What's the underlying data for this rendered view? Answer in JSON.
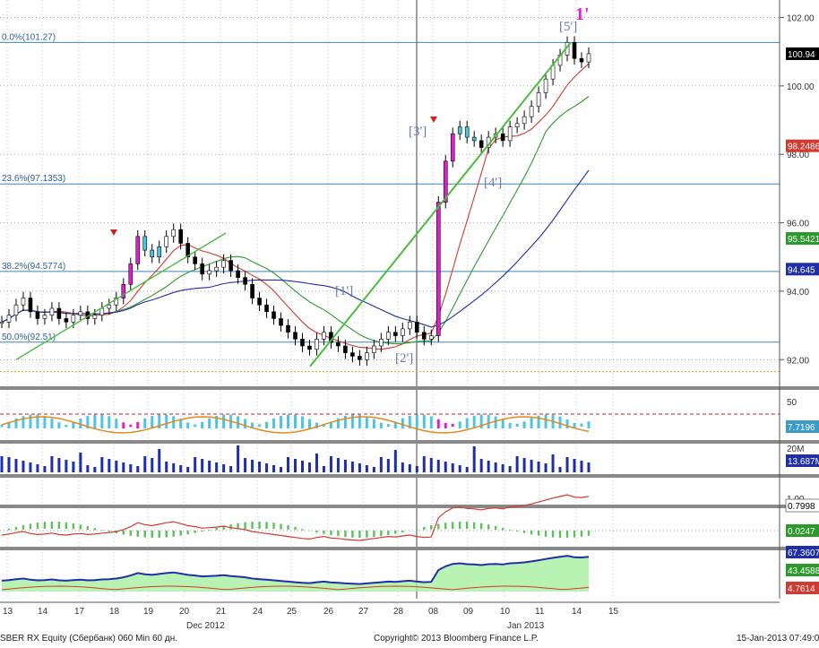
{
  "footer": {
    "left": "SBER RX Equity (Сбербанк) 060 Min 60 дн.",
    "center": "Copyright© 2013 Bloomberg Finance L.P.",
    "right": "15-Jan-2013 07:49:02"
  },
  "colors": {
    "price_candle": "#000000",
    "ma_fast": "#d03a30",
    "ma_mid": "#2b9a2b",
    "ma_slow": "#1f2fa8",
    "fib_line": "#3a86b8",
    "trend_line": "#4cbc3c",
    "label": "#6b78b0",
    "magenta": "#e020d0",
    "cyan": "#4ec4e4"
  },
  "chart_data": {
    "type": "candlestick",
    "x_tick_labels": [
      "13",
      "14",
      "17",
      "18",
      "19",
      "20",
      "21",
      "24",
      "25",
      "26",
      "27",
      "28",
      "08",
      "09",
      "10",
      "11",
      "14",
      "15"
    ],
    "month_labels": [
      "Dec 2012",
      "Jan 2013"
    ],
    "y_axis": {
      "ticks": [
        "102.00",
        "100.00",
        "98.00",
        "96.00",
        "94.00",
        "92.00"
      ],
      "range": [
        91.3,
        102.3
      ]
    },
    "fib_levels": [
      {
        "label": "0.0%(101.27)",
        "value": 101.27
      },
      {
        "label": "23.6%(97.1353)",
        "value": 97.1353
      },
      {
        "label": "38.2%(94.5774)",
        "value": 94.5774
      },
      {
        "label": "50.0%(92.51)",
        "value": 92.51
      }
    ],
    "price_badges": [
      {
        "text": "100.94",
        "value": 100.94,
        "color": "#000000"
      },
      {
        "text": "98.2486",
        "value": 98.2486,
        "color": "#d03a30"
      },
      {
        "text": "95.5421",
        "value": 95.5421,
        "color": "#2b9a2b"
      },
      {
        "text": "94.645",
        "value": 94.645,
        "color": "#1f2fa8"
      }
    ],
    "wave_labels": [
      {
        "text": "[1']"
      },
      {
        "text": "[2']"
      },
      {
        "text": "[3']"
      },
      {
        "text": "[4']"
      },
      {
        "text": "[5']"
      },
      {
        "text": "1'"
      }
    ],
    "price_path": [
      93.1,
      93.3,
      93.6,
      93.8,
      93.4,
      93.2,
      93.3,
      93.5,
      93.2,
      93.1,
      93.3,
      93.4,
      93.2,
      93.3,
      93.5,
      93.6,
      93.8,
      94.2,
      94.8,
      95.6,
      95.2,
      95.0,
      95.3,
      95.6,
      95.8,
      95.4,
      95.0,
      94.8,
      94.5,
      94.6,
      94.7,
      94.9,
      94.6,
      94.4,
      94.2,
      93.8,
      93.6,
      93.4,
      93.2,
      93.0,
      92.8,
      92.6,
      92.4,
      92.3,
      92.6,
      92.8,
      92.5,
      92.4,
      92.2,
      92.1,
      92.0,
      92.2,
      92.4,
      92.6,
      92.8,
      92.7,
      92.9,
      93.1,
      92.8,
      92.6,
      92.7,
      96.6,
      97.8,
      98.6,
      98.8,
      98.5,
      98.4,
      98.2,
      98.5,
      98.6,
      98.4,
      98.8,
      98.9,
      99.1,
      99.4,
      99.8,
      100.2,
      100.6,
      100.9,
      101.27,
      100.8,
      100.7,
      100.94
    ],
    "panels": [
      {
        "name": "RSI",
        "tick": "50",
        "badge": "7.7196",
        "badge_color": "#3b9bc8"
      },
      {
        "name": "Volume",
        "tick": "20M",
        "badge": "13.687M",
        "badge_color": "#1f2fa8"
      },
      {
        "name": "MACD",
        "tick": "1.00",
        "badges": [
          {
            "text": "0.7998",
            "color": "#ffffff"
          },
          {
            "text": "0.0247",
            "color": "#2b9a2b"
          }
        ]
      },
      {
        "name": "DMI",
        "badges": [
          {
            "text": "67.3607",
            "color": "#1f2fa8"
          },
          {
            "text": "43.4588",
            "color": "#2b9a2b"
          },
          {
            "text": "4.7614",
            "color": "#d03a30"
          }
        ]
      }
    ]
  }
}
